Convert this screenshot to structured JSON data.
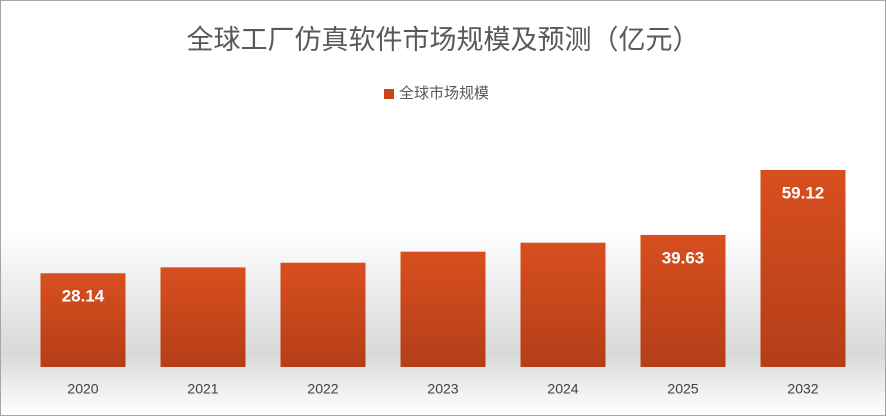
{
  "chart_data": {
    "type": "bar",
    "title": "全球工厂仿真软件市场规模及预测（亿元）",
    "categories": [
      "2020",
      "2021",
      "2022",
      "2023",
      "2024",
      "2025",
      "2032"
    ],
    "series": [
      {
        "name": "全球市场规模",
        "color": "#c8461c",
        "values": [
          28.14,
          29.9,
          31.3,
          34.6,
          37.3,
          39.63,
          59.12
        ],
        "value_labels": [
          "28.14",
          null,
          null,
          null,
          null,
          "39.63",
          "59.12"
        ]
      }
    ],
    "legend": "top"
  }
}
